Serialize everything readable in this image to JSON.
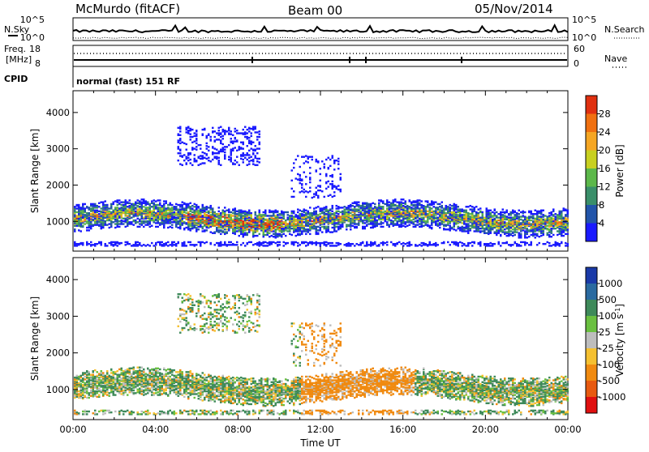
{
  "header": {
    "station": "McMurdo (fitACF)",
    "beam": "Beam 00",
    "date": "05/Nov/2014"
  },
  "summary_panel": {
    "nsky_label": "N.Sky",
    "nsearch_label": "N.Search",
    "nsky_ticks": [
      "10^5",
      "10^0"
    ],
    "nsearch_ticks": [
      "10^5",
      "10^0"
    ],
    "freq_label_1": "Freq.",
    "freq_label_2": "[MHz]",
    "freq_ticks": [
      "18",
      "8"
    ],
    "nave_label": "Nave",
    "nave_ticks": [
      "60",
      "0"
    ],
    "cpid_label": "CPID",
    "cpid_text": "normal (fast) 151 RF"
  },
  "chart_data": [
    {
      "type": "heatmap",
      "name": "power",
      "ylabel": "Slant Range [km]",
      "xlabel": "",
      "ylim": [
        180,
        4600
      ],
      "yticks": [
        "1000",
        "2000",
        "3000",
        "4000"
      ],
      "xticks": [
        "00:00",
        "04:00",
        "08:00",
        "12:00",
        "16:00",
        "20:00",
        "00:00"
      ],
      "colorbar": {
        "label": "Power [dB]",
        "ticks": [
          "4",
          "8",
          "12",
          "16",
          "20",
          "24",
          "28"
        ],
        "colors": [
          "#1a1aff",
          "#2255aa",
          "#3a8f6a",
          "#5cb84a",
          "#c8d020",
          "#f5a623",
          "#f07010",
          "#e03010"
        ]
      }
    },
    {
      "type": "heatmap",
      "name": "velocity",
      "ylabel": "Slant Range [km]",
      "xlabel": "Time UT",
      "ylim": [
        180,
        4600
      ],
      "yticks": [
        "1000",
        "2000",
        "3000",
        "4000"
      ],
      "xticks": [
        "00:00",
        "04:00",
        "08:00",
        "12:00",
        "16:00",
        "20:00",
        "00:00"
      ],
      "colorbar": {
        "label": "Velocity [m s-1]",
        "ticks": [
          "1000",
          "500",
          "100",
          "25",
          "-25",
          "-100",
          "-500",
          "-1000"
        ],
        "colors": [
          "#1a3aa8",
          "#2a6aa0",
          "#3e8a5a",
          "#6ac040",
          "#bdbdbd",
          "#f5c030",
          "#f08a10",
          "#e85a10",
          "#e01010"
        ]
      }
    }
  ]
}
